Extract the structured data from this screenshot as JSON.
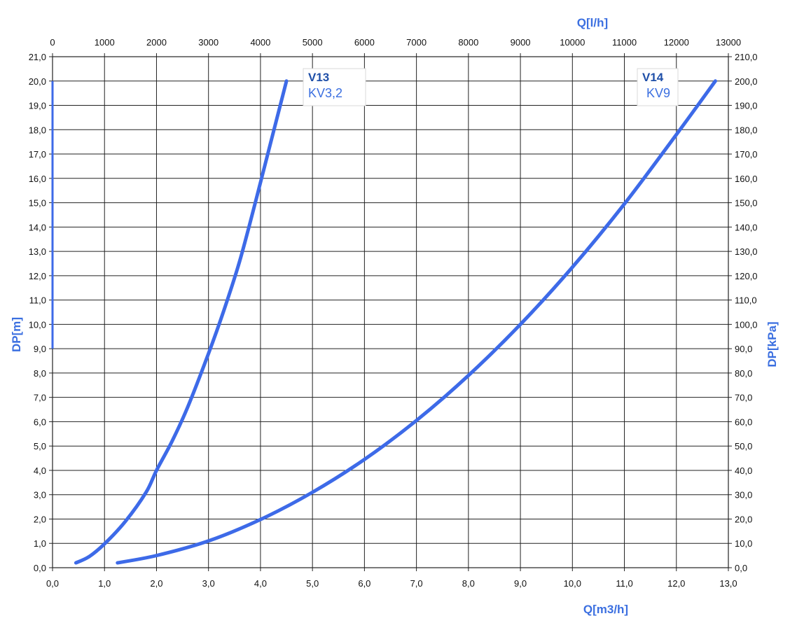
{
  "chart_data": {
    "type": "line",
    "x_axis_bottom": {
      "label": "Q[m3/h]",
      "ticks": [
        "0,0",
        "1,0",
        "2,0",
        "3,0",
        "4,0",
        "5,0",
        "6,0",
        "7,0",
        "8,0",
        "9,0",
        "10,0",
        "11,0",
        "12,0",
        "13,0"
      ],
      "range": [
        0,
        13
      ]
    },
    "x_axis_top": {
      "label": "Q[l/h]",
      "ticks": [
        "0",
        "1000",
        "2000",
        "3000",
        "4000",
        "5000",
        "6000",
        "7000",
        "8000",
        "9000",
        "10000",
        "11000",
        "12000",
        "13000"
      ],
      "range": [
        0,
        13000
      ]
    },
    "y_axis_left": {
      "label": "DP[m]",
      "ticks": [
        "0,0",
        "1,0",
        "2,0",
        "3,0",
        "4,0",
        "5,0",
        "6,0",
        "7,0",
        "8,0",
        "9,0",
        "10,0",
        "11,0",
        "12,0",
        "13,0",
        "14,0",
        "15,0",
        "16,0",
        "17,0",
        "18,0",
        "19,0",
        "20,0",
        "21,0"
      ],
      "range": [
        0,
        21
      ]
    },
    "y_axis_right": {
      "label": "DP[kPa]",
      "ticks": [
        "0,0",
        "10,0",
        "20,0",
        "30,0",
        "40,0",
        "50,0",
        "60,0",
        "70,0",
        "80,0",
        "90,0",
        "100,0",
        "110,0",
        "120,0",
        "130,0",
        "140,0",
        "150,0",
        "160,0",
        "170,0",
        "180,0",
        "190,0",
        "200,0",
        "210,0"
      ],
      "range": [
        0,
        210
      ]
    },
    "grid": true,
    "series": [
      {
        "name": "V13",
        "kv_label": "KV3,2",
        "color": "#3d6ae8",
        "x": [
          0.45,
          0.7,
          1.0,
          1.4,
          1.8,
          2.0,
          2.3,
          2.6,
          3.0,
          3.3,
          3.6,
          3.9,
          4.2,
          4.5
        ],
        "y": [
          0.2,
          0.45,
          0.98,
          1.9,
          3.1,
          4.0,
          5.2,
          6.6,
          8.8,
          10.6,
          12.6,
          15.0,
          17.5,
          20.0
        ]
      },
      {
        "name": "V14",
        "kv_label": "KV9",
        "color": "#3d6ae8",
        "x": [
          1.25,
          2.0,
          3.0,
          4.0,
          5.0,
          6.0,
          7.0,
          8.0,
          9.0,
          10.0,
          11.0,
          12.0,
          12.75
        ],
        "y": [
          0.2,
          0.5,
          1.1,
          1.98,
          3.1,
          4.45,
          6.05,
          7.9,
          10.0,
          12.35,
          14.95,
          17.8,
          20.0
        ]
      }
    ]
  }
}
